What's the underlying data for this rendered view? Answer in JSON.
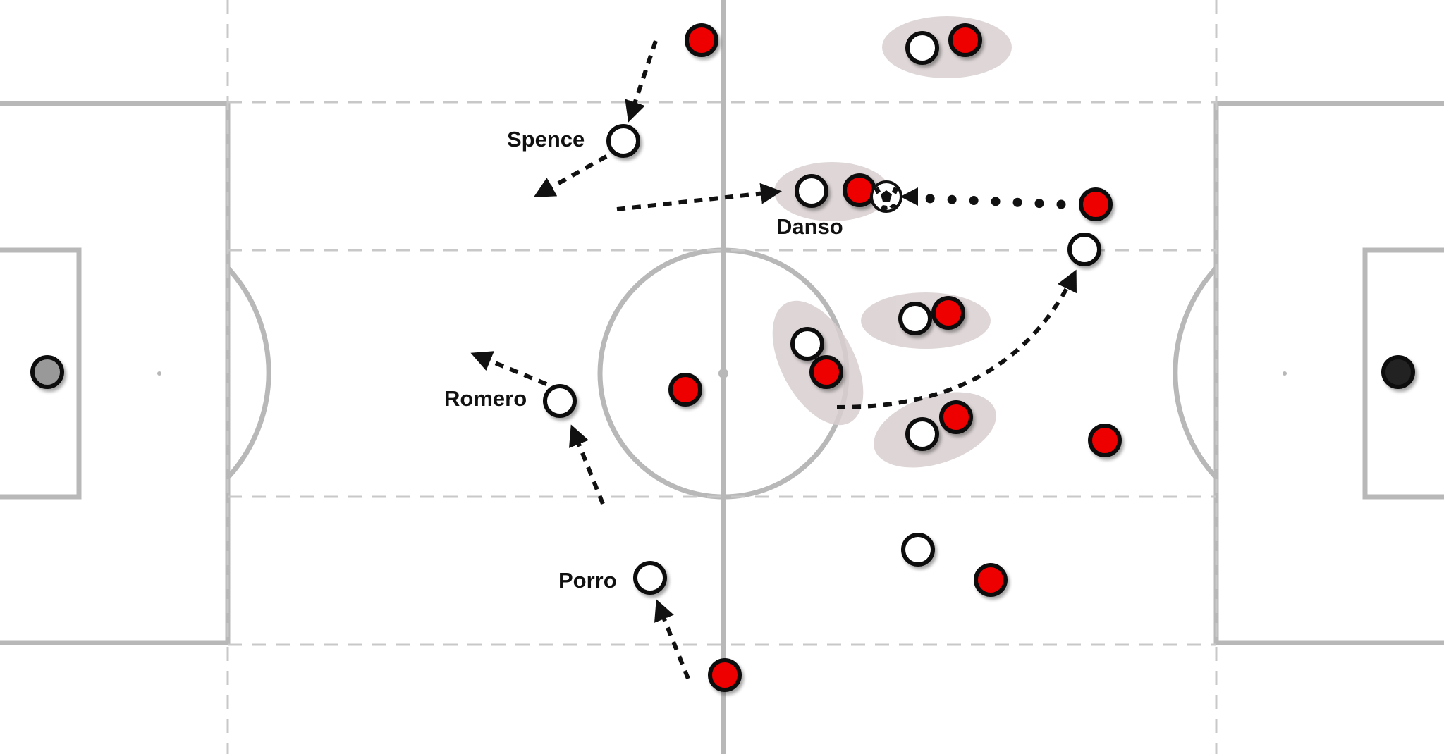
{
  "labels": {
    "spence": "Spence",
    "danso": "Danso",
    "romero": "Romero",
    "porro": "Porro"
  },
  "colors": {
    "pitch_line": "#b8b8b8",
    "red_player": "#ee0000",
    "white_player": "#ffffff",
    "outline": "#111111",
    "pairing_shadow": "#d9d0d0",
    "left_keeper": "#999999",
    "right_keeper": "#222222"
  },
  "players": {
    "white_team": [
      "Spence",
      "Danso",
      "Romero",
      "Porro"
    ],
    "marking_pairs": 6
  }
}
